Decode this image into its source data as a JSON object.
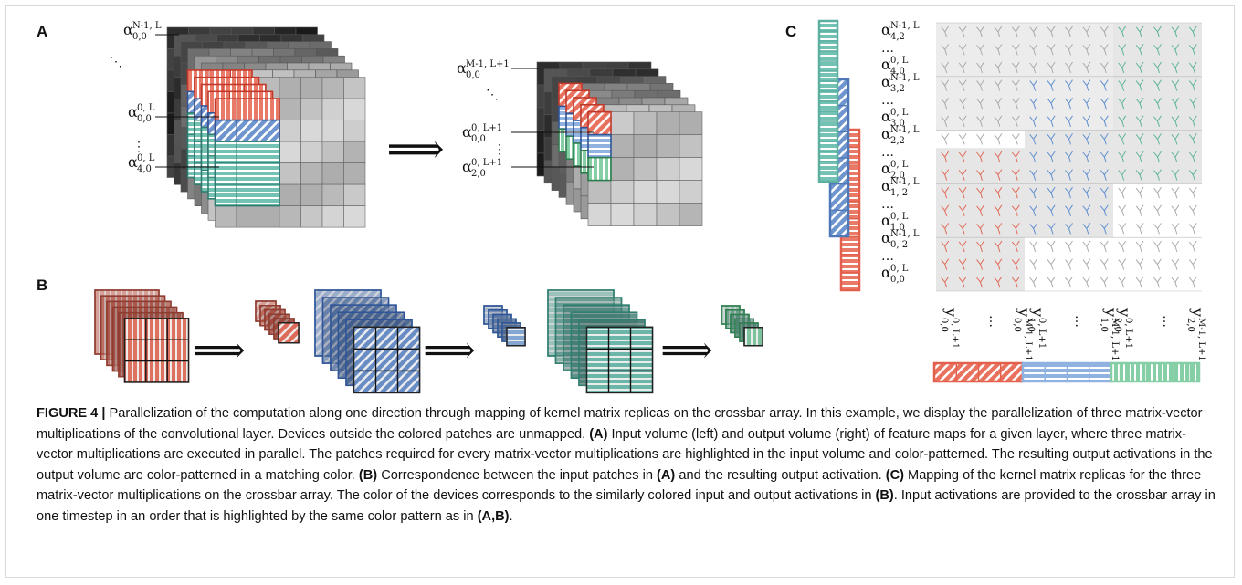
{
  "figure": {
    "panel_a": {
      "label": "A",
      "input_labels": [
        {
          "symbol": "α",
          "sup": "N-1, L",
          "sub": "0,0"
        },
        "⋱",
        {
          "symbol": "α",
          "sup": "0, L",
          "sub": "0,0"
        },
        "⋮",
        {
          "symbol": "α",
          "sup": "0, L",
          "sub": "4,0"
        }
      ],
      "arrow": "⟹",
      "output_labels": [
        {
          "symbol": "α",
          "sup": "M-1, L+1",
          "sub": "0,0"
        },
        "⋱",
        {
          "symbol": "α",
          "sup": "0, L+1",
          "sub": "0,0"
        },
        "⋮",
        {
          "symbol": "α",
          "sup": "0, L+1",
          "sub": "2,0"
        }
      ]
    },
    "panel_b": {
      "label": "B",
      "arrows": [
        "⟹",
        "⟹",
        "⟹"
      ]
    },
    "panel_c": {
      "label": "C",
      "row_labels": [
        {
          "symbol": "α",
          "sup": "N-1, L",
          "sub": "4,2"
        },
        "…",
        {
          "symbol": "α",
          "sup": "0, L",
          "sub": "4,0"
        },
        {
          "symbol": "α",
          "sup": "N-1, L",
          "sub": "3,2"
        },
        "…",
        {
          "symbol": "α",
          "sup": "0, L",
          "sub": "3,0"
        },
        {
          "symbol": "α",
          "sup": "N-1, L",
          "sub": "2,2"
        },
        "…",
        {
          "symbol": "α",
          "sup": "0, L",
          "sub": "2,0"
        },
        {
          "symbol": "α",
          "sup": "N-1, L",
          "sub": "1, 2"
        },
        "…",
        {
          "symbol": "α",
          "sup": "0, L",
          "sub": "1,0"
        },
        {
          "symbol": "α",
          "sup": "N-1, L",
          "sub": "0, 2"
        },
        "…",
        {
          "symbol": "α",
          "sup": "0, L",
          "sub": "0,0"
        }
      ],
      "column_labels": [
        {
          "symbol": "y",
          "sup": "0, L+1",
          "sub": "0,0"
        },
        "…",
        {
          "symbol": "y",
          "sup": "M-1, L+1",
          "sub": "0,0"
        },
        {
          "symbol": "y",
          "sup": "0, L+1",
          "sub": "1,0"
        },
        "…",
        {
          "symbol": "y",
          "sup": "M-1, L+1",
          "sub": "1,0"
        },
        {
          "symbol": "y",
          "sup": "0, L+1",
          "sub": "2,0"
        },
        "…",
        {
          "symbol": "y",
          "sup": "M-1, L+1",
          "sub": "2,0"
        }
      ]
    }
  },
  "caption": [
    {
      "text": "FIGURE 4 |",
      "bold": true
    },
    {
      "text": " Parallelization of the computation along one direction through mapping of kernel matrix replicas on the crossbar array. In this example, we display the parallelization of three matrix-vector multiplications of the convolutional layer. Devices outside the colored patches are unmapped. "
    },
    {
      "text": "(A)",
      "bold": true
    },
    {
      "text": " Input volume (left) and output volume (right) of feature maps for a given layer, where three matrix-vector multiplications are executed in parallel. The patches required for every matrix-vector multiplications are highlighted in the input volume and color-patterned. The resulting output activations in the output volume are color-patterned in a matching color. "
    },
    {
      "text": "(B)",
      "bold": true
    },
    {
      "text": " Correspondence between the input patches in "
    },
    {
      "text": "(A)",
      "bold": true
    },
    {
      "text": " and the resulting output activation. "
    },
    {
      "text": "(C)",
      "bold": true
    },
    {
      "text": " Mapping of the kernel matrix replicas for the three matrix-vector multiplications on the crossbar array. The color of the devices corresponds to the similarly colored input and output activations in "
    },
    {
      "text": "(B)",
      "bold": true
    },
    {
      "text": ". Input activations are provided to the crossbar array in one timestep in an order that is highlighted by the same color pattern as in "
    },
    {
      "text": "(A,B)",
      "bold": true
    },
    {
      "text": "."
    }
  ]
}
